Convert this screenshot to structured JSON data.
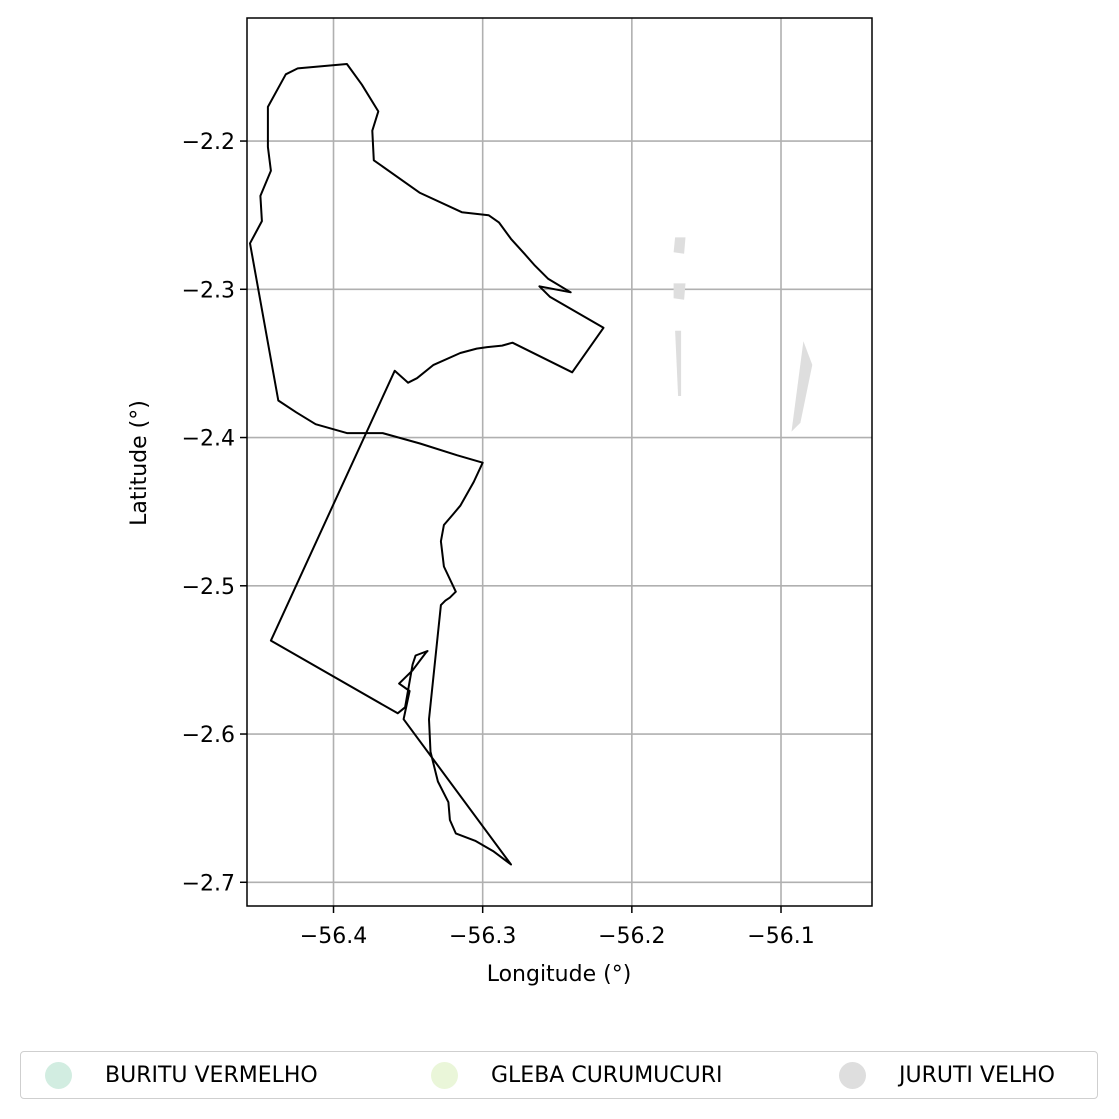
{
  "chart_data": {
    "type": "map",
    "xlabel": "Longitude (°)",
    "ylabel": "Latitude (°)",
    "xlim": [
      -56.458,
      -56.039
    ],
    "ylim": [
      -2.716,
      -2.117
    ],
    "xticks": [
      -56.4,
      -56.3,
      -56.2,
      -56.1
    ],
    "yticks": [
      -2.2,
      -2.3,
      -2.4,
      -2.5,
      -2.6,
      -2.7
    ],
    "xtick_labels": [
      "−56.4",
      "−56.3",
      "−56.2",
      "−56.1"
    ],
    "ytick_labels": [
      "−2.2",
      "−2.3",
      "−2.4",
      "−2.5",
      "−2.6",
      "−2.7"
    ],
    "grid": true,
    "boundary": [
      [
        -56.442,
        -2.537
      ],
      [
        -56.359,
        -2.355
      ],
      [
        -56.35,
        -2.363
      ],
      [
        -56.344,
        -2.36
      ],
      [
        -56.333,
        -2.351
      ],
      [
        -56.315,
        -2.343
      ],
      [
        -56.304,
        -2.34
      ],
      [
        -56.297,
        -2.339
      ],
      [
        -56.287,
        -2.338
      ],
      [
        -56.28,
        -2.336
      ],
      [
        -56.24,
        -2.356
      ],
      [
        -56.219,
        -2.326
      ],
      [
        -56.255,
        -2.305
      ],
      [
        -56.262,
        -2.298
      ],
      [
        -56.241,
        -2.302
      ],
      [
        -56.256,
        -2.293
      ],
      [
        -56.265,
        -2.284
      ],
      [
        -56.272,
        -2.276
      ],
      [
        -56.281,
        -2.266
      ],
      [
        -56.289,
        -2.255
      ],
      [
        -56.296,
        -2.25
      ],
      [
        -56.314,
        -2.248
      ],
      [
        -56.342,
        -2.235
      ],
      [
        -56.373,
        -2.213
      ],
      [
        -56.374,
        -2.193
      ],
      [
        -56.37,
        -2.18
      ],
      [
        -56.381,
        -2.162
      ],
      [
        -56.391,
        -2.148
      ],
      [
        -56.424,
        -2.151
      ],
      [
        -56.432,
        -2.155
      ],
      [
        -56.444,
        -2.177
      ],
      [
        -56.444,
        -2.204
      ],
      [
        -56.442,
        -2.22
      ],
      [
        -56.449,
        -2.237
      ],
      [
        -56.448,
        -2.254
      ],
      [
        -56.456,
        -2.269
      ],
      [
        -56.437,
        -2.375
      ],
      [
        -56.425,
        -2.383
      ],
      [
        -56.412,
        -2.391
      ],
      [
        -56.391,
        -2.397
      ],
      [
        -56.367,
        -2.397
      ],
      [
        -56.342,
        -2.404
      ],
      [
        -56.317,
        -2.412
      ],
      [
        -56.3,
        -2.417
      ],
      [
        -56.306,
        -2.43
      ],
      [
        -56.315,
        -2.446
      ],
      [
        -56.32,
        -2.452
      ],
      [
        -56.326,
        -2.459
      ],
      [
        -56.328,
        -2.47
      ],
      [
        -56.326,
        -2.487
      ],
      [
        -56.318,
        -2.504
      ],
      [
        -56.322,
        -2.508
      ],
      [
        -56.325,
        -2.51
      ],
      [
        -56.328,
        -2.513
      ],
      [
        -56.336,
        -2.59
      ],
      [
        -56.335,
        -2.612
      ],
      [
        -56.33,
        -2.632
      ],
      [
        -56.323,
        -2.646
      ],
      [
        -56.322,
        -2.658
      ],
      [
        -56.318,
        -2.667
      ],
      [
        -56.305,
        -2.672
      ],
      [
        -56.293,
        -2.679
      ],
      [
        -56.281,
        -2.688
      ],
      [
        -56.353,
        -2.59
      ],
      [
        -56.349,
        -2.571
      ],
      [
        -56.356,
        -2.566
      ],
      [
        -56.347,
        -2.557
      ],
      [
        -56.338,
        -2.545
      ],
      [
        -56.337,
        -2.544
      ],
      [
        -56.345,
        -2.547
      ],
      [
        -56.347,
        -2.553
      ],
      [
        -56.352,
        -2.582
      ],
      [
        -56.357,
        -2.586
      ],
      [
        -56.442,
        -2.537
      ]
    ],
    "shaded_areas": [
      {
        "name": "JURUTI VELHO",
        "points": [
          [
            -56.079,
            -2.351
          ],
          [
            -56.085,
            -2.335
          ],
          [
            -56.093,
            -2.396
          ],
          [
            -56.087,
            -2.39
          ]
        ]
      },
      {
        "name": "JURUTI VELHO",
        "points": [
          [
            -56.171,
            -2.328
          ],
          [
            -56.167,
            -2.328
          ],
          [
            -56.167,
            -2.372
          ],
          [
            -56.169,
            -2.372
          ]
        ]
      },
      {
        "name": "JURUTI VELHO",
        "points": [
          [
            -56.172,
            -2.296
          ],
          [
            -56.164,
            -2.296
          ],
          [
            -56.165,
            -2.307
          ],
          [
            -56.172,
            -2.306
          ]
        ]
      },
      {
        "name": "JURUTI VELHO",
        "points": [
          [
            -56.171,
            -2.265
          ],
          [
            -56.164,
            -2.265
          ],
          [
            -56.165,
            -2.276
          ],
          [
            -56.172,
            -2.275
          ]
        ]
      }
    ],
    "series": [
      {
        "name": "BURITU VERMELHO",
        "color": "#d2ede1"
      },
      {
        "name": "GLEBA CURUMUCURI",
        "color": "#eaf6d9"
      },
      {
        "name": "JURUTI VELHO",
        "color": "#dedede"
      }
    ]
  },
  "legend": {
    "items": [
      {
        "label": "BURITU VERMELHO",
        "color": "#d2ede1"
      },
      {
        "label": "GLEBA CURUMUCURI",
        "color": "#eaf6d9"
      },
      {
        "label": "JURUTI VELHO",
        "color": "#dedede"
      }
    ]
  }
}
